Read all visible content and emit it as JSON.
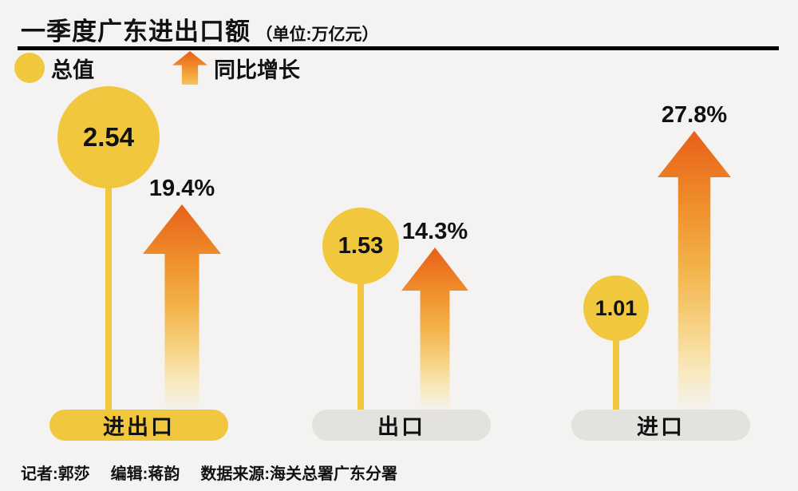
{
  "title": {
    "main": "一季度广东进出口额",
    "unit": "（单位:万亿元）"
  },
  "legend": {
    "circle_label": "总值",
    "arrow_label": "同比增长"
  },
  "chart_data": {
    "type": "bar",
    "title": "一季度广东进出口额（单位:万亿元）",
    "categories": [
      "进出口",
      "出口",
      "进口"
    ],
    "series": [
      {
        "name": "总值",
        "unit": "万亿元",
        "values": [
          2.54,
          1.53,
          1.01
        ]
      },
      {
        "name": "同比增长",
        "unit": "%",
        "values": [
          19.4,
          14.3,
          27.8
        ]
      }
    ],
    "legend_position": "top-left",
    "grid": false,
    "notes": "总值 shown as yellow bubbles sized by value; 同比增长 shown as orange gradient arrows sized by percent"
  },
  "groups": [
    {
      "label": "进出口",
      "value": "2.54",
      "pct": "19.4%"
    },
    {
      "label": "出口",
      "value": "1.53",
      "pct": "14.3%"
    },
    {
      "label": "进口",
      "value": "1.01",
      "pct": "27.8%"
    }
  ],
  "footer": {
    "reporter": "记者:郭莎",
    "editor": "编辑:蒋韵",
    "source": "数据来源:海关总署广东分署"
  },
  "colors": {
    "bubble_yellow": "#f1c73e",
    "arrow_orange": "#e7601a",
    "pill_gray": "#e3e2df",
    "background": "#f4f3f1",
    "text": "#111111"
  }
}
